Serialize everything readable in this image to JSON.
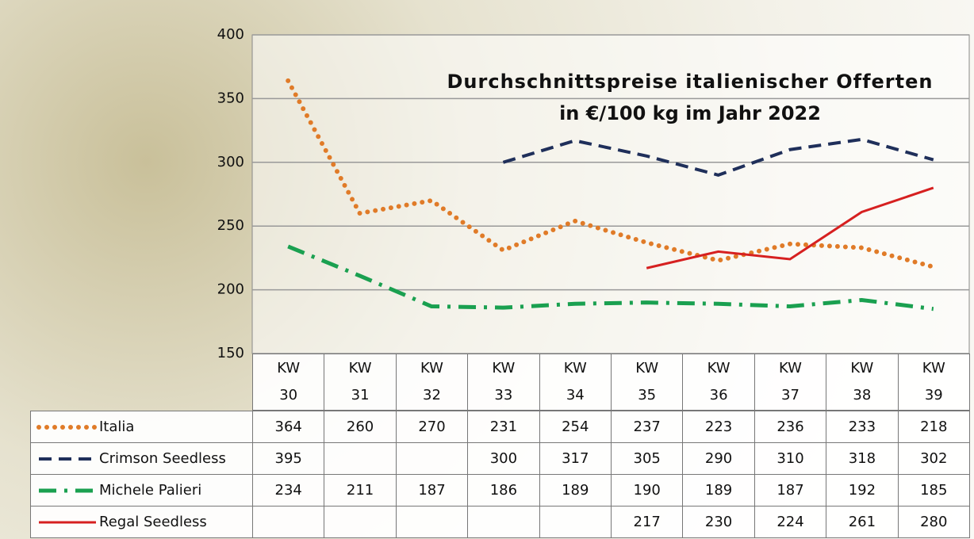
{
  "chart_data": {
    "type": "line",
    "title": "Durchschnittspreise italienischer Offerten",
    "subtitle": "in €/100 kg im Jahr 2022",
    "categories": [
      "KW 30",
      "KW 31",
      "KW 32",
      "KW 33",
      "KW 34",
      "KW 35",
      "KW 36",
      "KW 37",
      "KW 38",
      "KW 39"
    ],
    "series": [
      {
        "name": "Italia",
        "color": "#e07b28",
        "dash": "dotted",
        "values": [
          364,
          260,
          270,
          231,
          254,
          237,
          223,
          236,
          233,
          218
        ]
      },
      {
        "name": "Crimson Seedless",
        "color": "#1f2f5a",
        "dash": "dashed",
        "values": [
          395,
          null,
          null,
          300,
          317,
          305,
          290,
          310,
          318,
          302
        ]
      },
      {
        "name": "Michele Palieri",
        "color": "#1aa050",
        "dash": "dashdot",
        "values": [
          234,
          211,
          187,
          186,
          189,
          190,
          189,
          187,
          192,
          185
        ]
      },
      {
        "name": "Regal Seedless",
        "color": "#d62020",
        "dash": "solid",
        "values": [
          null,
          null,
          null,
          null,
          null,
          217,
          230,
          224,
          261,
          280
        ]
      }
    ],
    "ylim": [
      150,
      400
    ],
    "yticks": [
      150,
      200,
      250,
      300,
      350,
      400
    ],
    "grid": true
  }
}
